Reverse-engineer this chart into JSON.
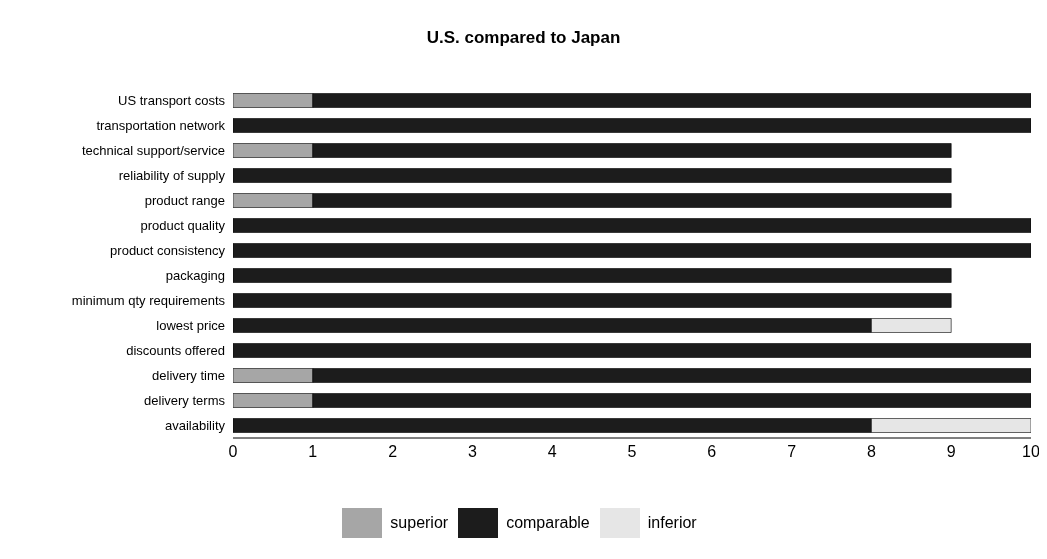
{
  "chart_data": {
    "type": "bar",
    "title": "U.S. compared to Japan",
    "orientation": "horizontal",
    "stacked": true,
    "categories": [
      "US transport costs",
      "transportation network ",
      "technical support/service",
      "reliability of supply",
      "product range",
      "product quality",
      "product consistency",
      "packaging",
      "minimum qty requirements",
      "lowest price",
      "discounts offered",
      "delivery time",
      "delivery terms",
      "availability"
    ],
    "series": [
      {
        "name": "superior",
        "color": "#a6a6a6",
        "values": [
          1,
          0,
          1,
          0,
          1,
          0,
          0,
          0,
          0,
          0,
          0,
          1,
          1,
          0
        ]
      },
      {
        "name": "comparable",
        "color": "#1c1c1c",
        "values": [
          9,
          10,
          8,
          9,
          8,
          10,
          10,
          9,
          9,
          8,
          10,
          9,
          9,
          8
        ]
      },
      {
        "name": "inferior",
        "color": "#e6e6e6",
        "values": [
          0,
          0,
          0,
          0,
          0,
          0,
          0,
          0,
          0,
          1,
          0,
          0,
          0,
          2
        ]
      }
    ],
    "xlim": [
      0,
      10
    ],
    "xticks": [
      0,
      1,
      2,
      3,
      4,
      5,
      6,
      7,
      8,
      9,
      10
    ],
    "legend": "bottom"
  }
}
